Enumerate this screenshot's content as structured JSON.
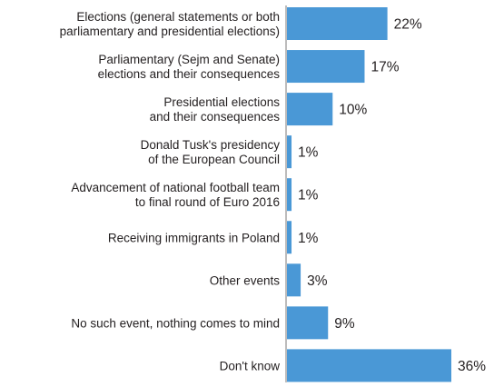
{
  "chart_data": {
    "type": "bar",
    "orientation": "horizontal",
    "categories": [
      [
        "Elections (general statements or both",
        "parliamentary and presidential elections)"
      ],
      [
        "Parliamentary (Sejm and Senate)",
        "elections and their consequences"
      ],
      [
        "Presidential elections",
        "and their consequences"
      ],
      [
        "Donald Tusk's presidency",
        "of the European Council"
      ],
      [
        "Advancement of national football team",
        "to final round of Euro 2016"
      ],
      [
        "Receiving immigrants in Poland"
      ],
      [
        "Other events"
      ],
      [
        "No such event, nothing comes to mind"
      ],
      [
        "Don't know"
      ]
    ],
    "values": [
      22,
      17,
      10,
      1,
      1,
      1,
      3,
      9,
      36
    ],
    "value_labels": [
      "22%",
      "17%",
      "10%",
      "1%",
      "1%",
      "1%",
      "3%",
      "9%",
      "36%"
    ],
    "unit": "%",
    "bar_color": "#4a98d6",
    "xlim": [
      0,
      36
    ],
    "grid": false,
    "legend": "none"
  }
}
